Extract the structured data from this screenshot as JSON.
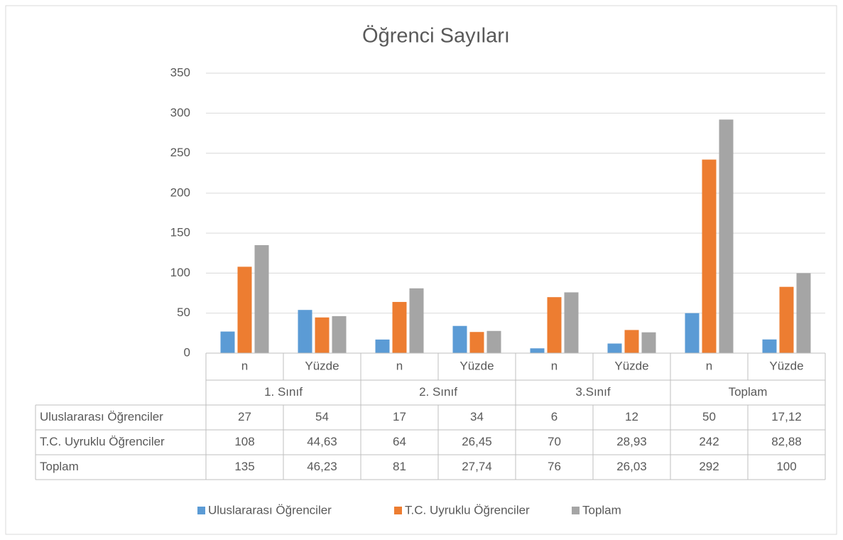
{
  "chart_data": {
    "type": "bar",
    "title": "Öğrenci Sayıları",
    "categories": [
      "n",
      "Yüzde",
      "n",
      "Yüzde",
      "n",
      "Yüzde",
      "n",
      "Yüzde"
    ],
    "groups": [
      "1. Sınıf",
      "2. Sınıf",
      "3.Sınıf",
      "Toplam"
    ],
    "series": [
      {
        "name": "Uluslararası Öğrenciler",
        "color": "#5b9bd5",
        "values": [
          27,
          54,
          17,
          34,
          6,
          12,
          50,
          17.12
        ],
        "value_labels": [
          "27",
          "54",
          "17",
          "34",
          "6",
          "12",
          "50",
          "17,12"
        ]
      },
      {
        "name": "T.C. Uyruklu Öğrenciler",
        "color": "#ed7d31",
        "values": [
          108,
          44.63,
          64,
          26.45,
          70,
          28.93,
          242,
          82.88
        ],
        "value_labels": [
          "108",
          "44,63",
          "64",
          "26,45",
          "70",
          "28,93",
          "242",
          "82,88"
        ]
      },
      {
        "name": "Toplam",
        "color": "#a5a5a5",
        "values": [
          135,
          46.23,
          81,
          27.74,
          76,
          26.03,
          292,
          100
        ],
        "value_labels": [
          "135",
          "46,23",
          "81",
          "27,74",
          "76",
          "26,03",
          "292",
          "100"
        ]
      }
    ],
    "ylim": [
      0,
      350
    ],
    "yticks": [
      0,
      50,
      100,
      150,
      200,
      250,
      300,
      350
    ],
    "grid": true,
    "legend": "bottom"
  }
}
